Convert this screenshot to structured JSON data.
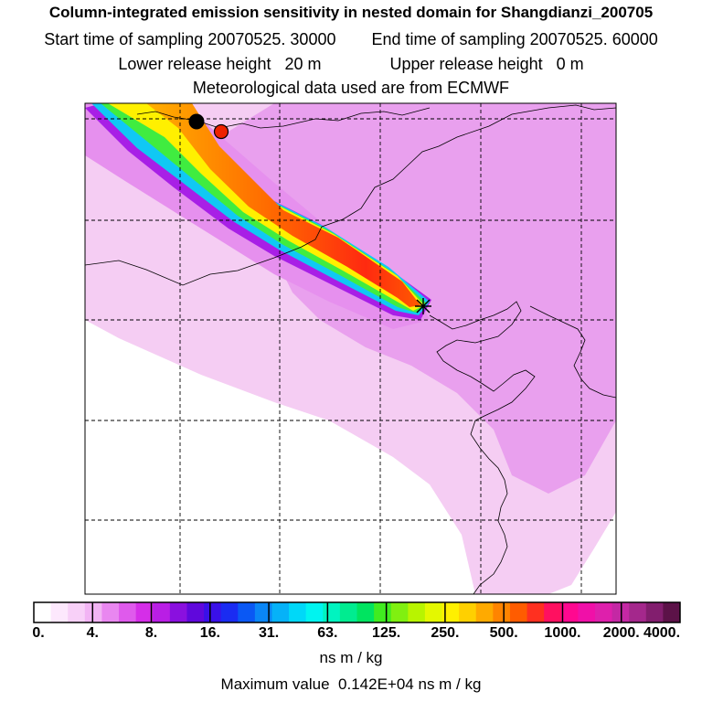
{
  "header": {
    "title": "Column-integrated emission sensitivity in nested domain for Shangdianzi_200705",
    "start_label": "Start time of sampling",
    "start_value": "20070525. 30000",
    "end_label": "End time of sampling",
    "end_value": "20070525. 60000",
    "lower_label": "Lower release height",
    "lower_value": "20 m",
    "upper_label": "Upper release height",
    "upper_value": "0 m",
    "met": "Meteorological data used are from ECMWF"
  },
  "map": {
    "field": "emission sensitivity",
    "receptor": "Shangdianzi",
    "markers": [
      {
        "name": "receptor-star",
        "color": "#000000"
      },
      {
        "name": "black-dot",
        "color": "#000000"
      },
      {
        "name": "red-dot",
        "color": "#ee2200"
      }
    ]
  },
  "colorbar": {
    "ticks": [
      "0.",
      "4.",
      "8.",
      "16.",
      "31.",
      "63.",
      "125.",
      "250.",
      "500.",
      "1000.",
      "2000.",
      "4000."
    ],
    "colors": [
      "#ffffff",
      "#fde8fd",
      "#f8d0f8",
      "#f2b4f4",
      "#e987f0",
      "#df5aec",
      "#d52ee8",
      "#b91ee5",
      "#8a10df",
      "#6008dc",
      "#3a10e8",
      "#1a2cf2",
      "#0a58f4",
      "#0a86f6",
      "#06b2f8",
      "#00d8f8",
      "#00f4f0",
      "#00f4c0",
      "#00ec90",
      "#00e460",
      "#40ec20",
      "#80f010",
      "#b8f400",
      "#e4f800",
      "#fff000",
      "#ffd000",
      "#ffaa00",
      "#ff8400",
      "#ff5c00",
      "#ff3020",
      "#ff1060",
      "#ff0890",
      "#f010a8",
      "#de20ac",
      "#c428a4",
      "#a4288c",
      "#821e6e",
      "#5c1248"
    ],
    "units": "ns m / kg",
    "max_label": "Maximum value",
    "max_value": "0.142E+04",
    "max_units": "ns m / kg"
  }
}
